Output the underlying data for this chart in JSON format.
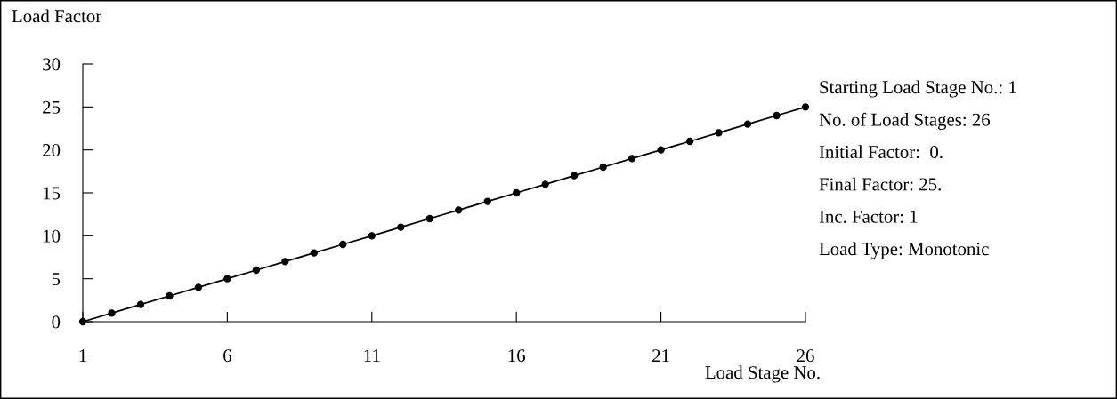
{
  "chart_data": {
    "type": "line",
    "xlabel": "Load Stage No.",
    "ylabel": "Load Factor",
    "x": [
      1,
      2,
      3,
      4,
      5,
      6,
      7,
      8,
      9,
      10,
      11,
      12,
      13,
      14,
      15,
      16,
      17,
      18,
      19,
      20,
      21,
      22,
      23,
      24,
      25,
      26
    ],
    "series": [
      {
        "color": "#000000",
        "values": [
          0,
          1,
          2,
          3,
          4,
          5,
          6,
          7,
          8,
          9,
          10,
          11,
          12,
          13,
          14,
          15,
          16,
          17,
          18,
          19,
          20,
          21,
          22,
          23,
          24,
          25
        ]
      }
    ],
    "xlim": [
      1,
      26
    ],
    "xticks": [
      1,
      6,
      11,
      16,
      21,
      26
    ],
    "ylim": [
      0,
      30
    ],
    "yticks": [
      0,
      5,
      10,
      15,
      20,
      25,
      30
    ],
    "grid": false,
    "legend": false,
    "marker": "circle",
    "line_style": "solid",
    "annotations": [
      "Starting Load Stage No.: 1",
      "No. of Load Stages: 26",
      "Initial Factor:  0.",
      "Final Factor: 25.",
      "Inc. Factor: 1",
      "Load Type: Monotonic"
    ]
  }
}
